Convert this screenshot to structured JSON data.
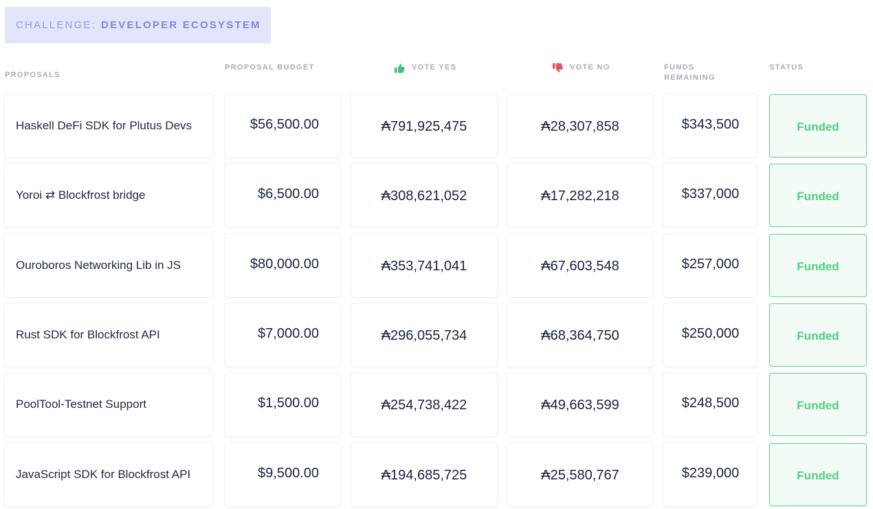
{
  "challenge": {
    "prefix": "CHALLENGE:",
    "name": "DEVELOPER ECOSYSTEM"
  },
  "headers": {
    "proposals": "PROPOSALS",
    "budget": "PROPOSAL BUDGET",
    "vote_yes": "VOTE YES",
    "vote_no": "VOTE NO",
    "funds_line1": "FUNDS",
    "funds_line2": "REMAINING",
    "status": "STATUS"
  },
  "colors": {
    "accent": "#7d86e2",
    "funded": "#4fcf7f",
    "thumbs_up": "#3dc47a",
    "thumbs_down": "#e8505b"
  },
  "icons": {
    "vote_yes": "thumbs-up-icon",
    "vote_no": "thumbs-down-icon"
  },
  "rows": [
    {
      "name": "Haskell DeFi SDK for Plutus Devs",
      "budget": "$56,500.00",
      "vote_yes": "₳791,925,475",
      "vote_no": "₳28,307,858",
      "funds_remaining": "$343,500",
      "status": "Funded"
    },
    {
      "name": "Yoroi ⇄ Blockfrost bridge",
      "budget": "$6,500.00",
      "vote_yes": "₳308,621,052",
      "vote_no": "₳17,282,218",
      "funds_remaining": "$337,000",
      "status": "Funded"
    },
    {
      "name": "Ouroboros Networking Lib in JS",
      "budget": "$80,000.00",
      "vote_yes": "₳353,741,041",
      "vote_no": "₳67,603,548",
      "funds_remaining": "$257,000",
      "status": "Funded"
    },
    {
      "name": "Rust SDK for Blockfrost API",
      "budget": "$7,000.00",
      "vote_yes": "₳296,055,734",
      "vote_no": "₳68,364,750",
      "funds_remaining": "$250,000",
      "status": "Funded"
    },
    {
      "name": "PoolTool-Testnet Support",
      "budget": "$1,500.00",
      "vote_yes": "₳254,738,422",
      "vote_no": "₳49,663,599",
      "funds_remaining": "$248,500",
      "status": "Funded"
    },
    {
      "name": "JavaScript SDK for Blockfrost API",
      "budget": "$9,500.00",
      "vote_yes": "₳194,685,725",
      "vote_no": "₳25,580,767",
      "funds_remaining": "$239,000",
      "status": "Funded"
    }
  ]
}
